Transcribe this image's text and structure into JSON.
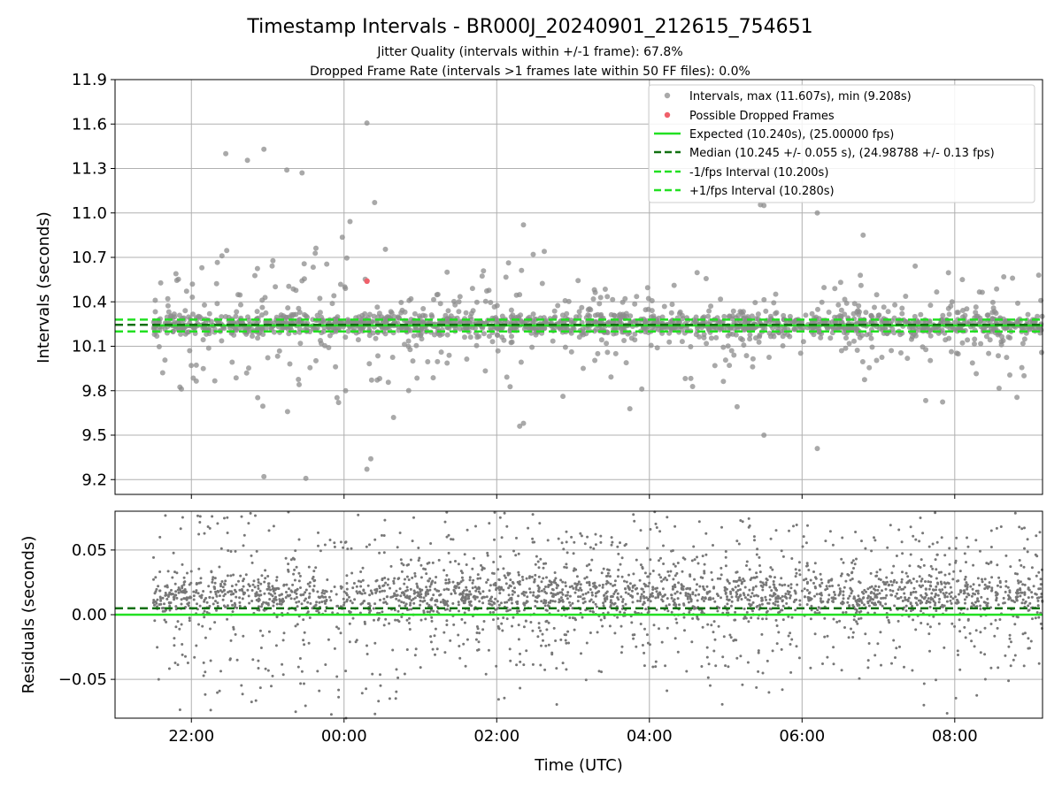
{
  "figure": {
    "title": "Timestamp Intervals - BR000J_20240901_212615_754651",
    "subtitle_1": "Jitter Quality (intervals within +/-1 frame): 67.8%",
    "subtitle_2": "Dropped Frame Rate (intervals >1 frames late within 50 FF files): 0.0%"
  },
  "chart_data": [
    {
      "type": "scatter",
      "panel": "top",
      "ylabel": "Intervals (seconds)",
      "xlabel": "",
      "xlim_hours": [
        -3.0,
        9.15
      ],
      "ylim": [
        9.1,
        11.9
      ],
      "yticks": [
        9.2,
        9.5,
        9.8,
        10.1,
        10.4,
        10.7,
        11.0,
        11.3,
        11.6,
        11.9
      ],
      "ytick_labels": [
        "9.2",
        "9.5",
        "9.8",
        "10.1",
        "10.4",
        "10.7",
        "11.0",
        "11.3",
        "11.6",
        "11.9"
      ],
      "grid": true,
      "legend_position": "top-right",
      "legend": [
        {
          "label": "Intervals, max (11.607s), min (9.208s)",
          "kind": "marker",
          "color": "#8c8c8c"
        },
        {
          "label": "Possible Dropped Frames",
          "kind": "marker",
          "color": "#f0606a"
        },
        {
          "label": "Expected (10.240s), (25.00000 fps)",
          "kind": "solid",
          "color": "#22e022"
        },
        {
          "label": "Median (10.245 +/- 0.055 s), (24.98788 +/- 0.13 fps)",
          "kind": "dashed",
          "color": "#107010"
        },
        {
          "label": "-1/fps Interval (10.200s)",
          "kind": "dashed",
          "color": "#22e022"
        },
        {
          "label": "+1/fps Interval (10.280s)",
          "kind": "dashed",
          "color": "#22e022"
        }
      ],
      "reference_lines": {
        "expected": 10.24,
        "median": 10.245,
        "minus_1fps": 10.2,
        "plus_1fps": 10.28
      },
      "series": [
        {
          "name": "Intervals, max (11.607s), min (9.208s)",
          "color": "#8c8c8c",
          "x_range_hours": [
            -2.5,
            9.15
          ],
          "y_center": 10.245,
          "count": 1900
        },
        {
          "name": "Possible Dropped Frames",
          "color": "#f0606a",
          "points": [
            {
              "x": 0.3,
              "y": 10.54
            }
          ]
        }
      ],
      "notable_points": [
        {
          "x": 0.3,
          "y": 11.607
        },
        {
          "x": -0.5,
          "y": 9.208
        },
        {
          "x": -1.55,
          "y": 11.4
        },
        {
          "x": -1.05,
          "y": 11.43
        },
        {
          "x": -0.75,
          "y": 11.29
        },
        {
          "x": -0.55,
          "y": 11.27
        },
        {
          "x": 0.4,
          "y": 11.07
        },
        {
          "x": 5.5,
          "y": 11.05
        },
        {
          "x": 6.2,
          "y": 11.0
        },
        {
          "x": 1.35,
          "y": 10.6
        },
        {
          "x": 2.35,
          "y": 10.92
        },
        {
          "x": 2.35,
          "y": 9.58
        },
        {
          "x": 2.3,
          "y": 9.56
        },
        {
          "x": 5.5,
          "y": 9.5
        },
        {
          "x": 6.2,
          "y": 9.41
        },
        {
          "x": 0.3,
          "y": 9.27
        },
        {
          "x": 0.35,
          "y": 9.34
        },
        {
          "x": -1.05,
          "y": 9.22
        },
        {
          "x": 6.8,
          "y": 10.85
        },
        {
          "x": 8.1,
          "y": 10.55
        },
        {
          "x": 9.1,
          "y": 10.58
        }
      ]
    },
    {
      "type": "scatter",
      "panel": "bottom",
      "ylabel": "Residuals (seconds)",
      "xlabel": "Time (UTC)",
      "xlim_hours": [
        -3.0,
        9.15
      ],
      "ylim": [
        -0.08,
        0.08
      ],
      "yticks": [
        -0.05,
        0.0,
        0.05
      ],
      "ytick_labels": [
        "−0.05",
        "0.00",
        "0.05"
      ],
      "xticks_hours": [
        -2,
        0,
        2,
        4,
        6,
        8
      ],
      "xtick_labels": [
        "22:00",
        "00:00",
        "02:00",
        "04:00",
        "06:00",
        "08:00"
      ],
      "grid": true,
      "reference_lines": {
        "expected": 0.0,
        "median": 0.005
      },
      "series": [
        {
          "name": "",
          "color": "#777777",
          "x_range_hours": [
            -2.5,
            9.15
          ],
          "y_center": 0.015,
          "count": 3000
        }
      ]
    }
  ]
}
